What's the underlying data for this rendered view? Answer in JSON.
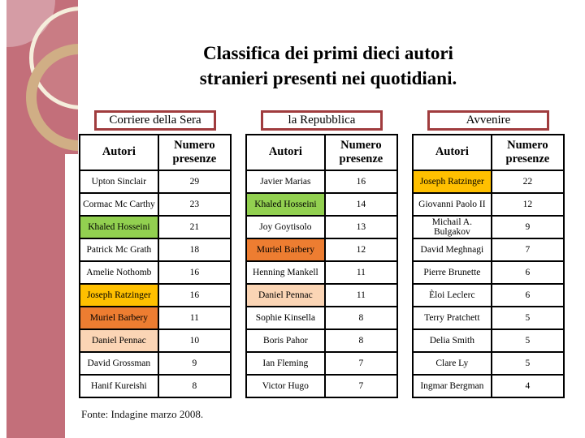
{
  "slide": {
    "title_line1": "Classifica dei primi dieci autori",
    "title_line2": "stranieri presenti nei quotidiani.",
    "footer": "Fonte: Indagine marzo 2008."
  },
  "table_header": {
    "col_author": "Autori",
    "col_count": "Numero presenze"
  },
  "colors": {
    "green": "#92D050",
    "amber": "#FFC000",
    "orange": "#ED7D31",
    "peach": "#FBD5B5"
  },
  "tables": [
    {
      "newspaper": "Corriere della Sera",
      "rows": [
        {
          "author": "Upton Sinclair",
          "count": "29",
          "highlight": null
        },
        {
          "author": "Cormac Mc Carthy",
          "count": "23",
          "highlight": null
        },
        {
          "author": "Khaled Hosseini",
          "count": "21",
          "highlight": "green"
        },
        {
          "author": "Patrick Mc Grath",
          "count": "18",
          "highlight": null
        },
        {
          "author": "Amelie Nothomb",
          "count": "16",
          "highlight": null
        },
        {
          "author": "Joseph Ratzinger",
          "count": "16",
          "highlight": "amber"
        },
        {
          "author": "Muriel Barbery",
          "count": "11",
          "highlight": "orange"
        },
        {
          "author": "Daniel Pennac",
          "count": "10",
          "highlight": "peach"
        },
        {
          "author": "David Grossman",
          "count": "9",
          "highlight": null
        },
        {
          "author": "Hanif Kureishi",
          "count": "8",
          "highlight": null
        }
      ]
    },
    {
      "newspaper": "la Repubblica",
      "rows": [
        {
          "author": "Javier Marias",
          "count": "16",
          "highlight": null
        },
        {
          "author": "Khaled Hosseini",
          "count": "14",
          "highlight": "green"
        },
        {
          "author": "Joy Goytisolo",
          "count": "13",
          "highlight": null
        },
        {
          "author": "Muriel Barbery",
          "count": "12",
          "highlight": "orange"
        },
        {
          "author": "Henning Mankell",
          "count": "11",
          "highlight": null
        },
        {
          "author": "Daniel Pennac",
          "count": "11",
          "highlight": "peach"
        },
        {
          "author": "Sophie Kinsella",
          "count": "8",
          "highlight": null
        },
        {
          "author": "Boris Pahor",
          "count": "8",
          "highlight": null
        },
        {
          "author": "Ian Fleming",
          "count": "7",
          "highlight": null
        },
        {
          "author": "Victor Hugo",
          "count": "7",
          "highlight": null
        }
      ]
    },
    {
      "newspaper": "Avvenire",
      "rows": [
        {
          "author": "Joseph Ratzinger",
          "count": "22",
          "highlight": "amber"
        },
        {
          "author": "Giovanni Paolo II",
          "count": "12",
          "highlight": null
        },
        {
          "author": "Michail A. Bulgakov",
          "count": "9",
          "highlight": null
        },
        {
          "author": "David Meghnagi",
          "count": "7",
          "highlight": null
        },
        {
          "author": "Pierre Brunette",
          "count": "6",
          "highlight": null
        },
        {
          "author": "Èloi Leclerc",
          "count": "6",
          "highlight": null
        },
        {
          "author": "Terry Pratchett",
          "count": "5",
          "highlight": null
        },
        {
          "author": "Delia Smith",
          "count": "5",
          "highlight": null
        },
        {
          "author": "Clare Ly",
          "count": "5",
          "highlight": null
        },
        {
          "author": "Ingmar Bergman",
          "count": "4",
          "highlight": null
        }
      ]
    }
  ]
}
